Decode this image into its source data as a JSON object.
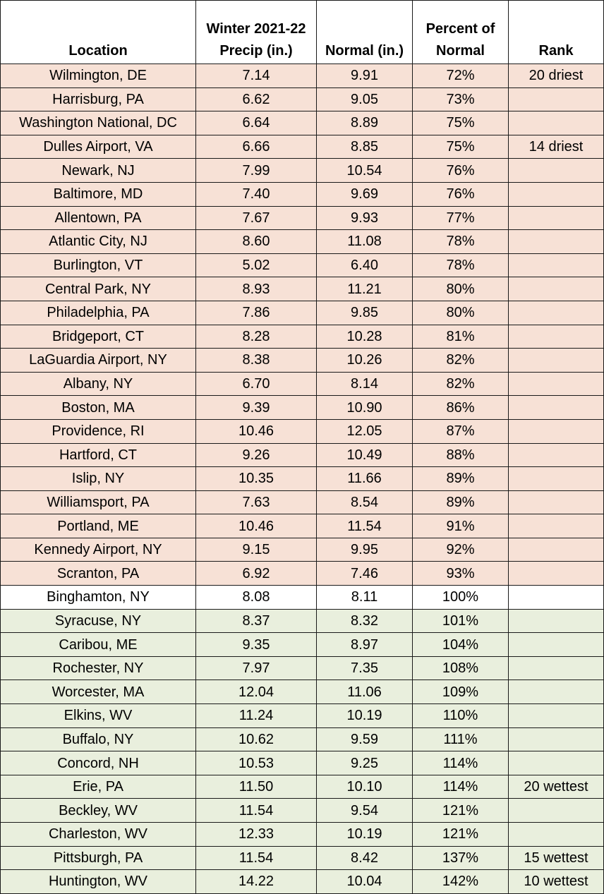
{
  "headers": {
    "location": "Location",
    "precip_line1": "Winter 2021-22",
    "precip_line2": "Precip (in.)",
    "normal": "Normal (in.)",
    "percent_line1": "Percent of",
    "percent_line2": "Normal",
    "rank": "Rank"
  },
  "row_colors": {
    "below_normal": "#f7e1d6",
    "near_normal": "#ffffff",
    "above_normal": "#e9efdd"
  },
  "rows": [
    {
      "location": "Wilmington, DE",
      "precip": "7.14",
      "normal": "9.91",
      "percent": "72%",
      "rank": "20 driest",
      "category": "below"
    },
    {
      "location": "Harrisburg, PA",
      "precip": "6.62",
      "normal": "9.05",
      "percent": "73%",
      "rank": "",
      "category": "below"
    },
    {
      "location": "Washington National, DC",
      "precip": "6.64",
      "normal": "8.89",
      "percent": "75%",
      "rank": "",
      "category": "below"
    },
    {
      "location": "Dulles Airport, VA",
      "precip": "6.66",
      "normal": "8.85",
      "percent": "75%",
      "rank": "14 driest",
      "category": "below"
    },
    {
      "location": "Newark, NJ",
      "precip": "7.99",
      "normal": "10.54",
      "percent": "76%",
      "rank": "",
      "category": "below"
    },
    {
      "location": "Baltimore, MD",
      "precip": "7.40",
      "normal": "9.69",
      "percent": "76%",
      "rank": "",
      "category": "below"
    },
    {
      "location": "Allentown, PA",
      "precip": "7.67",
      "normal": "9.93",
      "percent": "77%",
      "rank": "",
      "category": "below"
    },
    {
      "location": "Atlantic City, NJ",
      "precip": "8.60",
      "normal": "11.08",
      "percent": "78%",
      "rank": "",
      "category": "below"
    },
    {
      "location": "Burlington, VT",
      "precip": "5.02",
      "normal": "6.40",
      "percent": "78%",
      "rank": "",
      "category": "below"
    },
    {
      "location": "Central Park, NY",
      "precip": "8.93",
      "normal": "11.21",
      "percent": "80%",
      "rank": "",
      "category": "below"
    },
    {
      "location": "Philadelphia, PA",
      "precip": "7.86",
      "normal": "9.85",
      "percent": "80%",
      "rank": "",
      "category": "below"
    },
    {
      "location": "Bridgeport, CT",
      "precip": "8.28",
      "normal": "10.28",
      "percent": "81%",
      "rank": "",
      "category": "below"
    },
    {
      "location": "LaGuardia Airport, NY",
      "precip": "8.38",
      "normal": "10.26",
      "percent": "82%",
      "rank": "",
      "category": "below"
    },
    {
      "location": "Albany, NY",
      "precip": "6.70",
      "normal": "8.14",
      "percent": "82%",
      "rank": "",
      "category": "below"
    },
    {
      "location": "Boston, MA",
      "precip": "9.39",
      "normal": "10.90",
      "percent": "86%",
      "rank": "",
      "category": "below"
    },
    {
      "location": "Providence, RI",
      "precip": "10.46",
      "normal": "12.05",
      "percent": "87%",
      "rank": "",
      "category": "below"
    },
    {
      "location": "Hartford, CT",
      "precip": "9.26",
      "normal": "10.49",
      "percent": "88%",
      "rank": "",
      "category": "below"
    },
    {
      "location": "Islip, NY",
      "precip": "10.35",
      "normal": "11.66",
      "percent": "89%",
      "rank": "",
      "category": "below"
    },
    {
      "location": "Williamsport, PA",
      "precip": "7.63",
      "normal": "8.54",
      "percent": "89%",
      "rank": "",
      "category": "below"
    },
    {
      "location": "Portland, ME",
      "precip": "10.46",
      "normal": "11.54",
      "percent": "91%",
      "rank": "",
      "category": "below"
    },
    {
      "location": "Kennedy Airport, NY",
      "precip": "9.15",
      "normal": "9.95",
      "percent": "92%",
      "rank": "",
      "category": "below"
    },
    {
      "location": "Scranton, PA",
      "precip": "6.92",
      "normal": "7.46",
      "percent": "93%",
      "rank": "",
      "category": "below"
    },
    {
      "location": "Binghamton, NY",
      "precip": "8.08",
      "normal": "8.11",
      "percent": "100%",
      "rank": "",
      "category": "normal"
    },
    {
      "location": "Syracuse, NY",
      "precip": "8.37",
      "normal": "8.32",
      "percent": "101%",
      "rank": "",
      "category": "above"
    },
    {
      "location": "Caribou, ME",
      "precip": "9.35",
      "normal": "8.97",
      "percent": "104%",
      "rank": "",
      "category": "above"
    },
    {
      "location": "Rochester, NY",
      "precip": "7.97",
      "normal": "7.35",
      "percent": "108%",
      "rank": "",
      "category": "above"
    },
    {
      "location": "Worcester, MA",
      "precip": "12.04",
      "normal": "11.06",
      "percent": "109%",
      "rank": "",
      "category": "above"
    },
    {
      "location": "Elkins, WV",
      "precip": "11.24",
      "normal": "10.19",
      "percent": "110%",
      "rank": "",
      "category": "above"
    },
    {
      "location": "Buffalo, NY",
      "precip": "10.62",
      "normal": "9.59",
      "percent": "111%",
      "rank": "",
      "category": "above"
    },
    {
      "location": "Concord, NH",
      "precip": "10.53",
      "normal": "9.25",
      "percent": "114%",
      "rank": "",
      "category": "above"
    },
    {
      "location": "Erie, PA",
      "precip": "11.50",
      "normal": "10.10",
      "percent": "114%",
      "rank": "20 wettest",
      "category": "above"
    },
    {
      "location": "Beckley, WV",
      "precip": "11.54",
      "normal": "9.54",
      "percent": "121%",
      "rank": "",
      "category": "above"
    },
    {
      "location": "Charleston, WV",
      "precip": "12.33",
      "normal": "10.19",
      "percent": "121%",
      "rank": "",
      "category": "above"
    },
    {
      "location": "Pittsburgh, PA",
      "precip": "11.54",
      "normal": "8.42",
      "percent": "137%",
      "rank": "15 wettest",
      "category": "above"
    },
    {
      "location": "Huntington, WV",
      "precip": "14.22",
      "normal": "10.04",
      "percent": "142%",
      "rank": "10 wettest",
      "category": "above"
    }
  ]
}
